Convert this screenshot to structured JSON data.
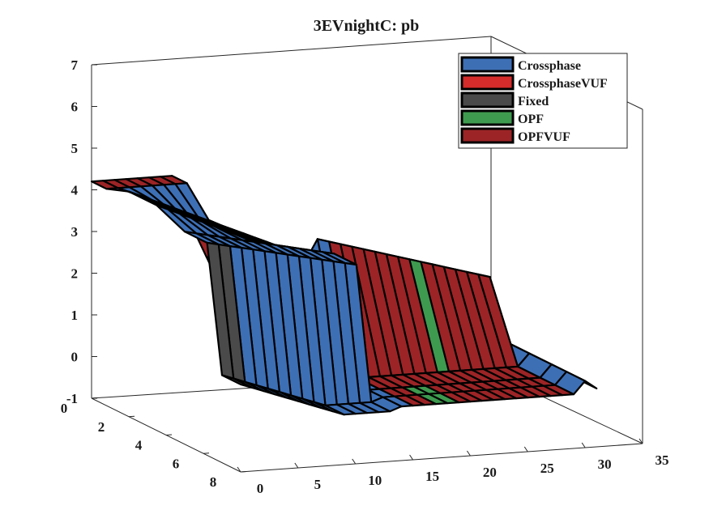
{
  "chart_data": {
    "type": "surface3d",
    "title": "3EVnightC: pb",
    "xlabel": "",
    "ylabel": "",
    "zlabel": "",
    "xlim": [
      0,
      35
    ],
    "ylim": [
      0,
      8
    ],
    "zlim": [
      -1,
      7
    ],
    "x_ticks": [
      "0",
      "5",
      "10",
      "15",
      "20",
      "25",
      "30",
      "35"
    ],
    "y_ticks": [
      "0",
      "2",
      "4",
      "6",
      "8"
    ],
    "z_ticks": [
      "-1",
      "0",
      "1",
      "2",
      "3",
      "4",
      "5",
      "6",
      "7"
    ],
    "legend_position": "top-right",
    "series": [
      {
        "name": "Crossphase",
        "color": "#3d6fb5"
      },
      {
        "name": "CrossphaseVUF",
        "color": "#d42c2a"
      },
      {
        "name": "Fixed",
        "color": "#4a4a4a"
      },
      {
        "name": "OPF",
        "color": "#3e9a4f"
      },
      {
        "name": "OPFVUF",
        "color": "#9c2426"
      }
    ]
  }
}
